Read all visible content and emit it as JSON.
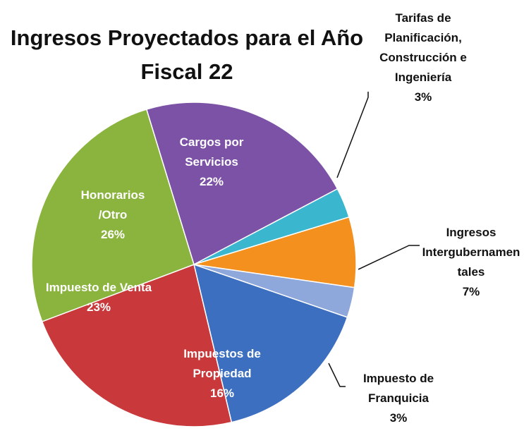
{
  "chart_data": {
    "type": "pie",
    "title": "Ingresos Proyectados para el Año Fiscal 22",
    "categories": [
      "Cargos por Servicios",
      "Tarifas de Planificación, Construcción e Ingeniería",
      "Ingresos Intergubernamentales",
      "Impuesto de Franquicia",
      "Impuestos de Propiedad",
      "Impuesto de Venta",
      "Honorarios /Otro"
    ],
    "values": [
      22,
      3,
      7,
      3,
      16,
      23,
      26
    ],
    "value_labels": [
      "22%",
      "3%",
      "7%",
      "3%",
      "16%",
      "23%",
      "26%"
    ],
    "colors": [
      "#7b52a6",
      "#3ab7cf",
      "#f3901e",
      "#8fa8dc",
      "#3d6fc0",
      "#c9383a",
      "#8ab43e"
    ]
  }
}
